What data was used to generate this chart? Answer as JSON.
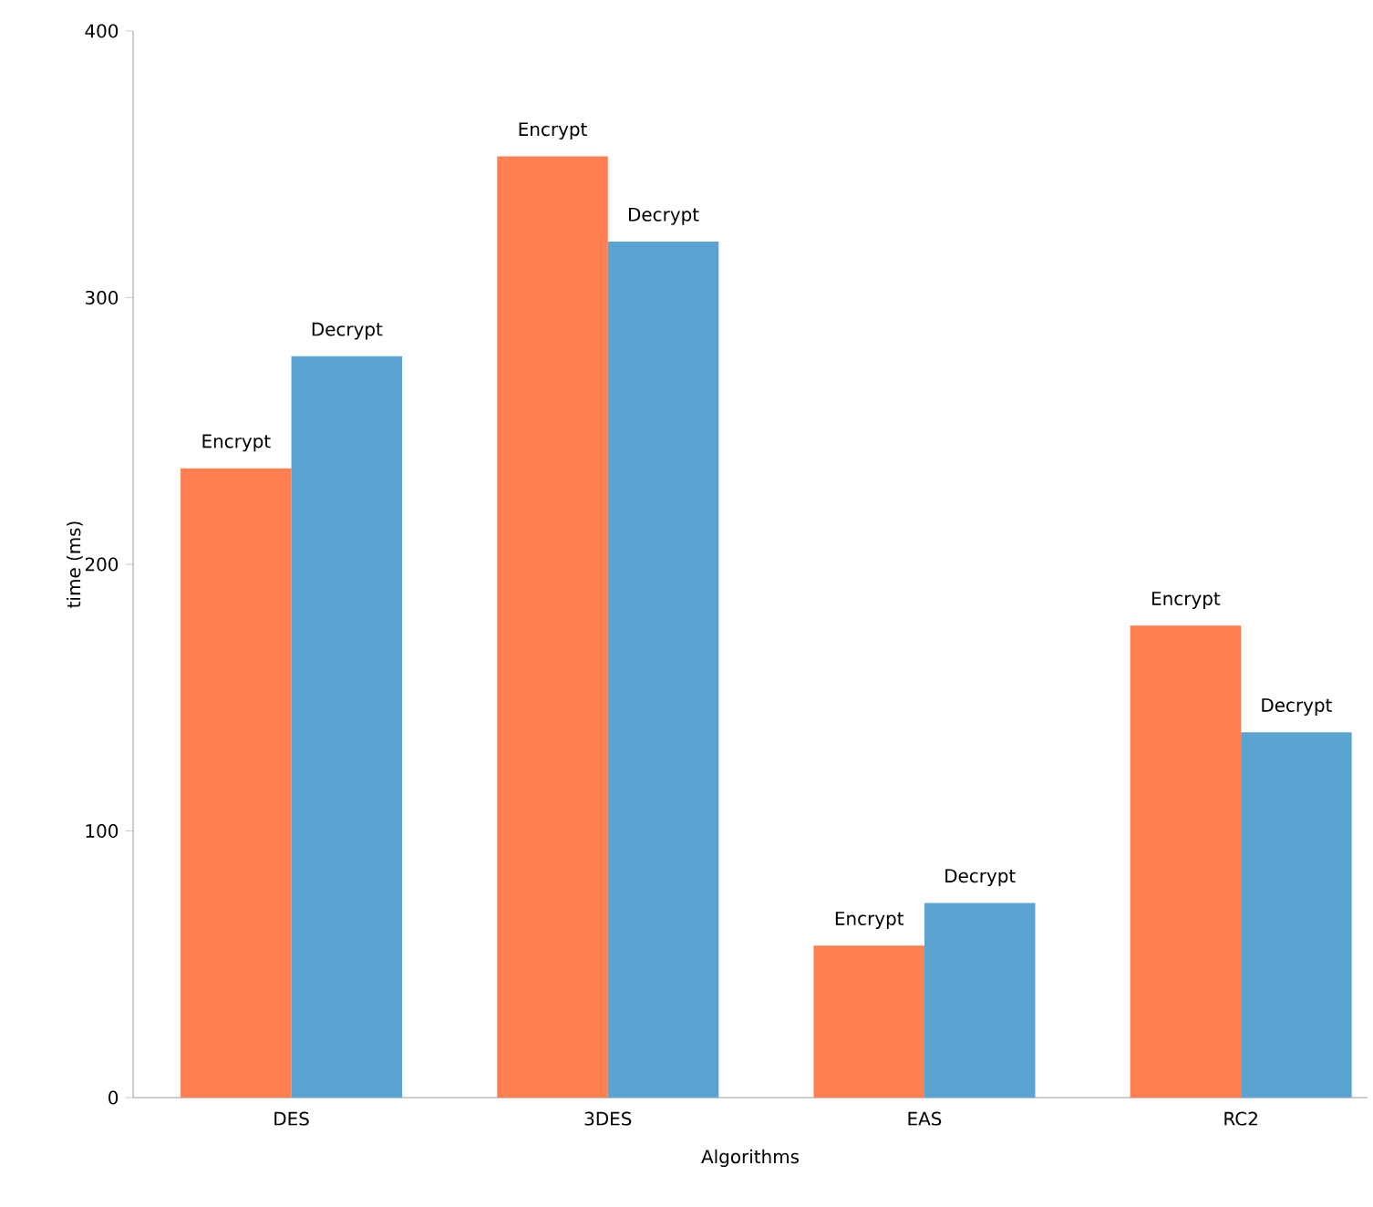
{
  "chart_data": {
    "type": "bar",
    "xlabel": "Algorithms",
    "ylabel": "time (ms)",
    "categories": [
      "DES",
      "3DES",
      "EAS",
      "RC2"
    ],
    "series": [
      {
        "name": "Encrypt",
        "color": "#ff7f50",
        "values": [
          236,
          353,
          57,
          177
        ]
      },
      {
        "name": "Decrypt",
        "color": "#5ba3d1",
        "values": [
          278,
          321,
          73,
          137
        ]
      }
    ],
    "ylim": [
      0,
      400
    ],
    "yticks": [
      0,
      100,
      200,
      300,
      400
    ],
    "grid": false
  }
}
